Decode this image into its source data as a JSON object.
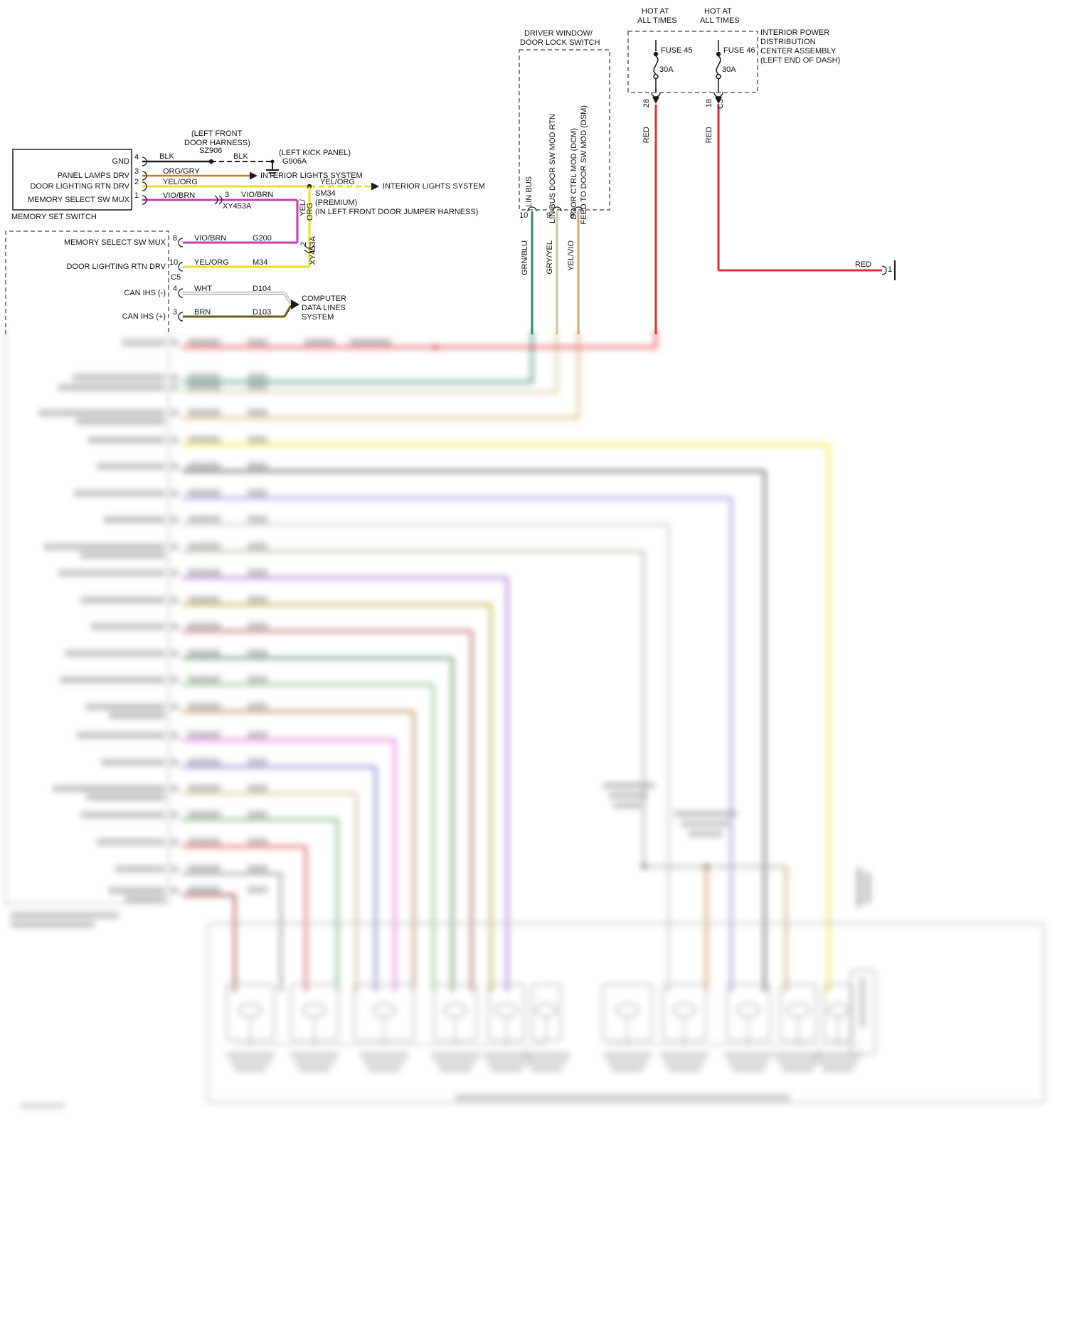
{
  "colors": {
    "red": "#e03030",
    "yellow": "#eedd22",
    "orange_gray": "#cc7a2a",
    "violet_brown": "#c93cb6",
    "black": "#1a1a1a",
    "white_wire": "#f4f4f4",
    "brown": "#6b5a10",
    "green_blue": "#2f8a72",
    "gray_yellow": "#cfc49a",
    "yellow_violet": "#d9a868"
  },
  "memory_set_switch": {
    "title": "MEMORY SET SWITCH",
    "rows": [
      {
        "label": "GND",
        "pin": "4",
        "wire": "BLK"
      },
      {
        "label": "PANEL LAMPS DRV",
        "pin": "3",
        "wire": "ORG/GRY"
      },
      {
        "label": "DOOR LIGHTING RTN DRV",
        "pin": "2",
        "wire": "YEL/ORG"
      },
      {
        "label": "MEMORY SELECT SW MUX",
        "pin": "1",
        "wire": "VIO/BRN"
      }
    ],
    "harness_note_1": "(LEFT FRONT",
    "harness_note_2": "DOOR HARNESS)",
    "splice": "SZ906",
    "ground_wire": "BLK",
    "kick_panel_note": "(LEFT KICK PANEL)",
    "ground_id": "G906A",
    "interior_lights_1": "INTERIOR LIGHTS SYSTEM",
    "yel_org_right": "YEL/ORG",
    "interior_lights_2": "INTERIOR LIGHTS SYSTEM",
    "inline_pin": "3",
    "inline_wire": "VIO/BRN",
    "inline_connector": "XY453A",
    "vert_wire_1": "YEL/",
    "vert_wire_2": "ORG",
    "splice_2": "SM34",
    "premium_note": "(PREMIUM)",
    "jumper_note": "(IN LEFT FRONT DOOR JUMPER HARNESS)"
  },
  "door_module": {
    "rows": [
      {
        "label": "MEMORY SELECT SW MUX",
        "pin": "8",
        "wire": "VIO/BRN",
        "circuit": "G200"
      },
      {
        "label": "DOOR LIGHTING RTN DRV",
        "pin": "10",
        "wire": "YEL/ORG",
        "circuit": "M34"
      },
      {
        "label": "CAN IHS (-)",
        "pin": "4",
        "wire": "WHT",
        "circuit": "D104"
      },
      {
        "label": "CAN IHS (+)",
        "pin": "3",
        "wire": "BRN",
        "circuit": "D103"
      }
    ],
    "connector": "C5",
    "inline_pin": "2",
    "inline_connector": "XY453A",
    "computer_1": "COMPUTER",
    "computer_2": "DATA LINES",
    "computer_3": "SYSTEM"
  },
  "driver_window_switch": {
    "title_1": "DRIVER WINDOW/",
    "title_2": "DOOR LOCK SWITCH",
    "fn_lin_bus": "LIN BUS",
    "fn_lin_bus_rtn": "LIN BUS DOOR SW MOD RTN",
    "fn_dcm_1": "DOOR CTRL MOD (DCM)",
    "fn_dcm_2": "FEED TO DOOR SW MOD (DSM)",
    "pin_10": "10",
    "pin_9": "9",
    "pin_8": "8",
    "wire_grn_blu": "GRN/BLU",
    "wire_gry_yel": "GRY/YEL",
    "wire_yel_vio": "YEL/VIO"
  },
  "power_distribution": {
    "hot_1a": "HOT AT",
    "hot_1b": "ALL TIMES",
    "hot_2a": "HOT AT",
    "hot_2b": "ALL TIMES",
    "fuse_45": "FUSE 45",
    "fuse_45_rating": "30A",
    "fuse_46": "FUSE 46",
    "fuse_46_rating": "30A",
    "assembly_1": "INTERIOR POWER",
    "assembly_2": "DISTRIBUTION",
    "assembly_3": "CENTER ASSEMBLY",
    "assembly_4": "(LEFT END OF DASH)",
    "pin_28": "28",
    "pin_18": "18",
    "conn_c3": "C3",
    "wire_red_left": "RED",
    "wire_red_right": "RED",
    "wire_red_out": "RED",
    "pin_1": "1"
  }
}
